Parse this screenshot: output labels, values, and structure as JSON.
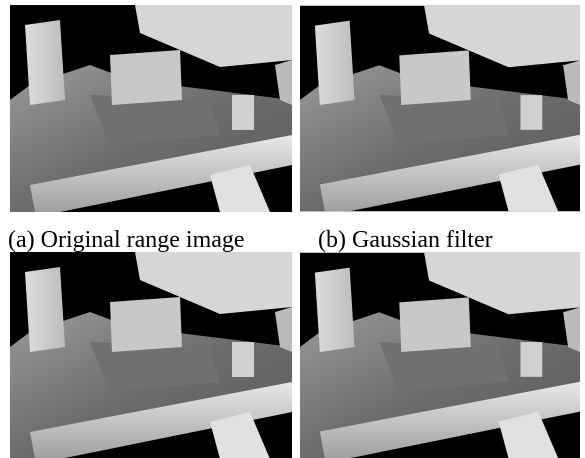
{
  "figure": {
    "captions": [
      "(a) Original range image",
      "(b) Gaussian filter"
    ]
  }
}
